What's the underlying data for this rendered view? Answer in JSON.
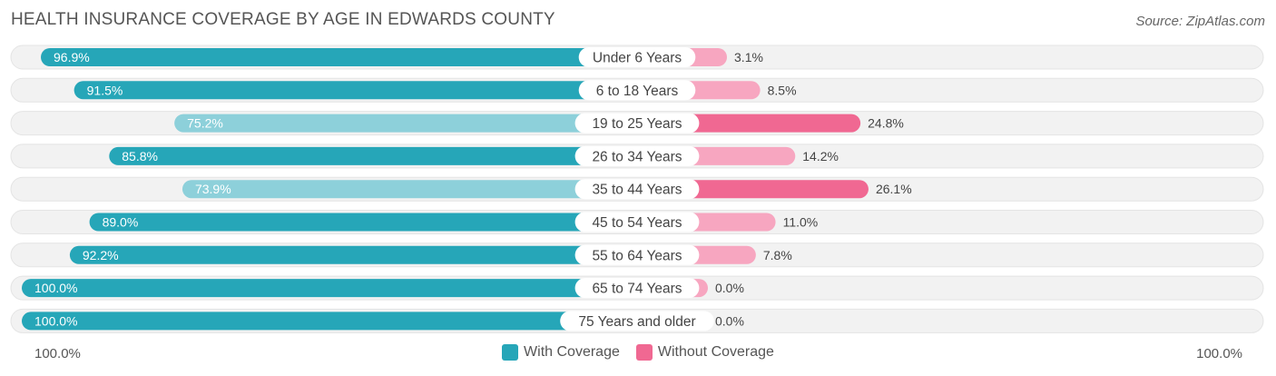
{
  "header": {
    "title": "HEALTH INSURANCE COVERAGE BY AGE IN EDWARDS COUNTY",
    "source": "Source: ZipAtlas.com"
  },
  "colors": {
    "with_dark": "#26a6b8",
    "with_light": "#8dd0da",
    "without_dark": "#f06892",
    "without_light": "#f7a6c0",
    "track": "#f2f2f2"
  },
  "axis": {
    "left_label": "100.0%",
    "right_label": "100.0%"
  },
  "legend": {
    "with_label": "With Coverage",
    "without_label": "Without Coverage"
  },
  "chart_data": {
    "type": "bar",
    "orientation": "horizontal-diverging",
    "title": "HEALTH INSURANCE COVERAGE BY AGE IN EDWARDS COUNTY",
    "categories": [
      "Under 6 Years",
      "6 to 18 Years",
      "19 to 25 Years",
      "26 to 34 Years",
      "35 to 44 Years",
      "45 to 54 Years",
      "55 to 64 Years",
      "65 to 74 Years",
      "75 Years and older"
    ],
    "series": [
      {
        "name": "With Coverage",
        "values": [
          96.9,
          91.5,
          75.2,
          85.8,
          73.9,
          89.0,
          92.2,
          100.0,
          100.0
        ],
        "labels": [
          "96.9%",
          "91.5%",
          "75.2%",
          "85.8%",
          "73.9%",
          "89.0%",
          "92.2%",
          "100.0%",
          "100.0%"
        ]
      },
      {
        "name": "Without Coverage",
        "values": [
          3.1,
          8.5,
          24.8,
          14.2,
          26.1,
          11.0,
          7.8,
          0.0,
          0.0
        ],
        "labels": [
          "3.1%",
          "8.5%",
          "24.8%",
          "14.2%",
          "26.1%",
          "11.0%",
          "7.8%",
          "0.0%",
          "0.0%"
        ]
      }
    ],
    "xlim": [
      0,
      100
    ],
    "legend_position": "bottom-center"
  }
}
